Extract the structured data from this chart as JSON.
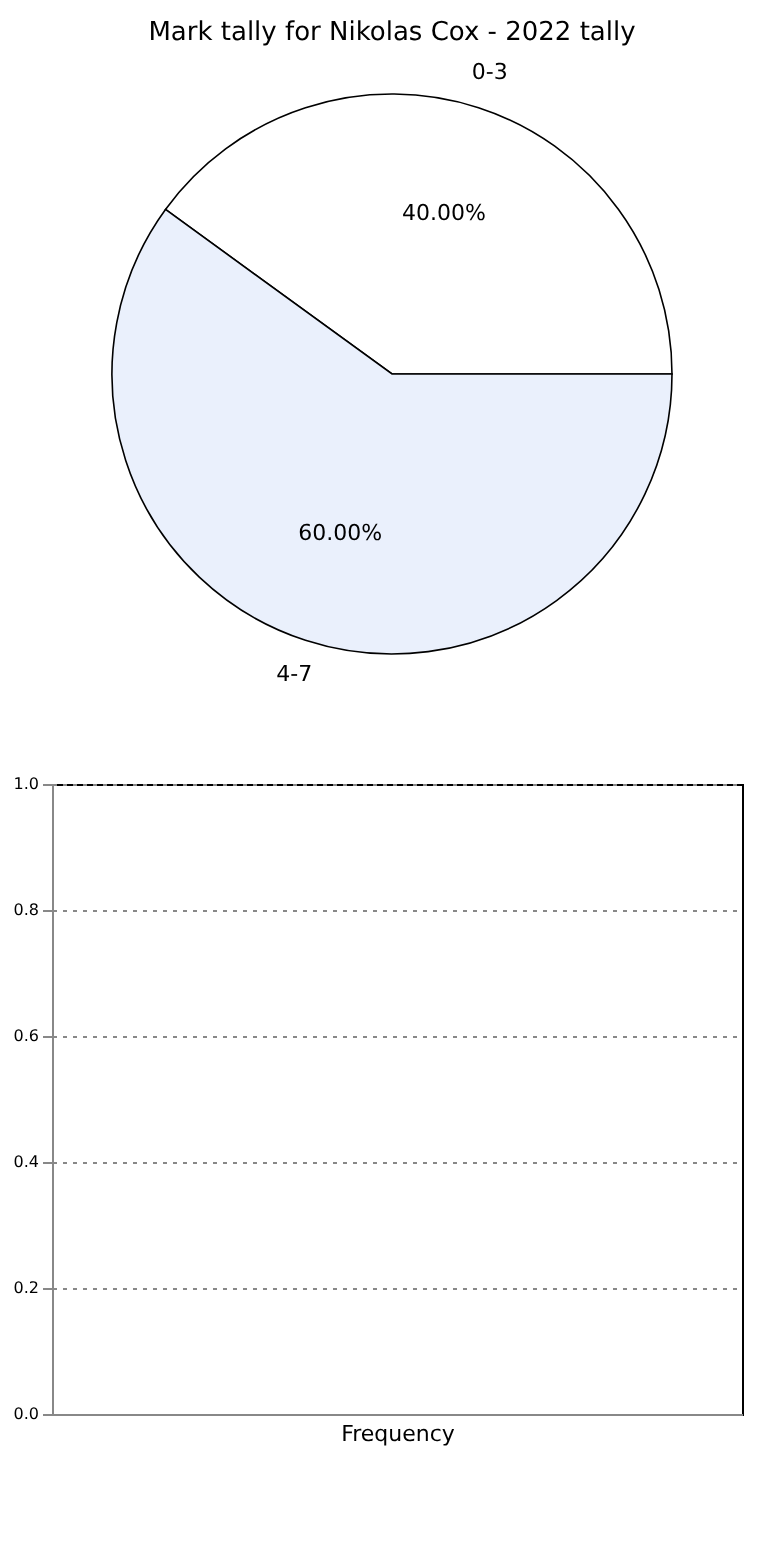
{
  "chart_data": [
    {
      "type": "pie",
      "title": "Mark tally for Nikolas Cox - 2022 tally",
      "categories": [
        "0-3",
        "4-7"
      ],
      "values": [
        40,
        60
      ],
      "colors": [
        "#ffffff",
        "#eaf0fc"
      ],
      "value_labels": [
        "40.00%",
        "60.00%"
      ]
    },
    {
      "type": "bar",
      "xlabel": "Frequency",
      "categories": [
        null
      ],
      "values": [
        null
      ],
      "ylim": [
        0,
        1
      ],
      "yticks": [
        {
          "value": 0,
          "label": "0.0"
        },
        {
          "value": 0.2,
          "label": "0.2"
        },
        {
          "value": 0.4,
          "label": "0.4"
        },
        {
          "value": 0.6,
          "label": "0.6"
        },
        {
          "value": 0.8,
          "label": "0.8"
        },
        {
          "value": 1,
          "label": "1.0"
        }
      ],
      "grid": "y"
    }
  ]
}
